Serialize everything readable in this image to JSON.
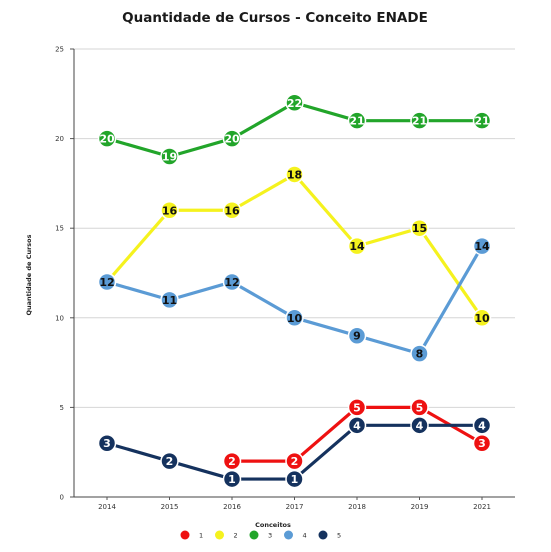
{
  "chart_data": {
    "type": "line",
    "title": "Quantidade de Cursos - Conceito ENADE",
    "xlabel": "",
    "ylabel": "Quantidade de Cursos",
    "x": [
      "2014",
      "2015",
      "2016",
      "2017",
      "2018",
      "2019",
      "2021"
    ],
    "ylim": [
      0,
      25
    ],
    "yticks": [
      "0",
      "5",
      "10",
      "15",
      "20",
      "25"
    ],
    "grid": true,
    "legend": {
      "title": "Conceitos",
      "placement": "bottom"
    },
    "series": [
      {
        "name": "1",
        "color": "#ee1111",
        "text_color": "#ffffff",
        "values": [
          null,
          null,
          2,
          2,
          5,
          5,
          3
        ]
      },
      {
        "name": "2",
        "color": "#f5f21e",
        "text_color": "#111111",
        "values": [
          12,
          16,
          16,
          18,
          14,
          15,
          10
        ]
      },
      {
        "name": "3",
        "color": "#22a52a",
        "text_color": "#ffffff",
        "values": [
          20,
          19,
          20,
          22,
          21,
          21,
          21
        ]
      },
      {
        "name": "4",
        "color": "#5b9bd5",
        "text_color": "#111111",
        "values": [
          12,
          11,
          12,
          10,
          9,
          8,
          14
        ]
      },
      {
        "name": "5",
        "color": "#15325e",
        "text_color": "#ffffff",
        "values": [
          3,
          2,
          1,
          1,
          4,
          4,
          4
        ]
      }
    ]
  }
}
